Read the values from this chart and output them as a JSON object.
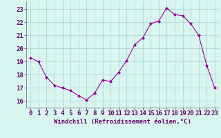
{
  "x": [
    0,
    1,
    2,
    3,
    4,
    5,
    6,
    7,
    8,
    9,
    10,
    11,
    12,
    13,
    14,
    15,
    16,
    17,
    18,
    19,
    20,
    21,
    22,
    23
  ],
  "y": [
    19.3,
    19.0,
    17.8,
    17.2,
    17.0,
    16.8,
    16.4,
    16.1,
    16.6,
    17.6,
    17.5,
    18.2,
    19.1,
    20.3,
    20.8,
    21.9,
    22.1,
    23.1,
    22.6,
    22.5,
    21.9,
    21.0,
    18.7,
    17.0
  ],
  "line_color": "#990099",
  "marker": "D",
  "marker_size": 2.0,
  "bg_color": "#d8f5f0",
  "grid_color": "#b0d8d8",
  "axis_color": "#660066",
  "xlabel": "Windchill (Refroidissement éolien,°C)",
  "xlabel_fontsize": 6.5,
  "ylabel_ticks": [
    16,
    17,
    18,
    19,
    20,
    21,
    22,
    23
  ],
  "xlim": [
    -0.5,
    23.5
  ],
  "ylim": [
    15.5,
    23.6
  ],
  "tick_fontsize": 6.5,
  "spine_color": "#666666"
}
